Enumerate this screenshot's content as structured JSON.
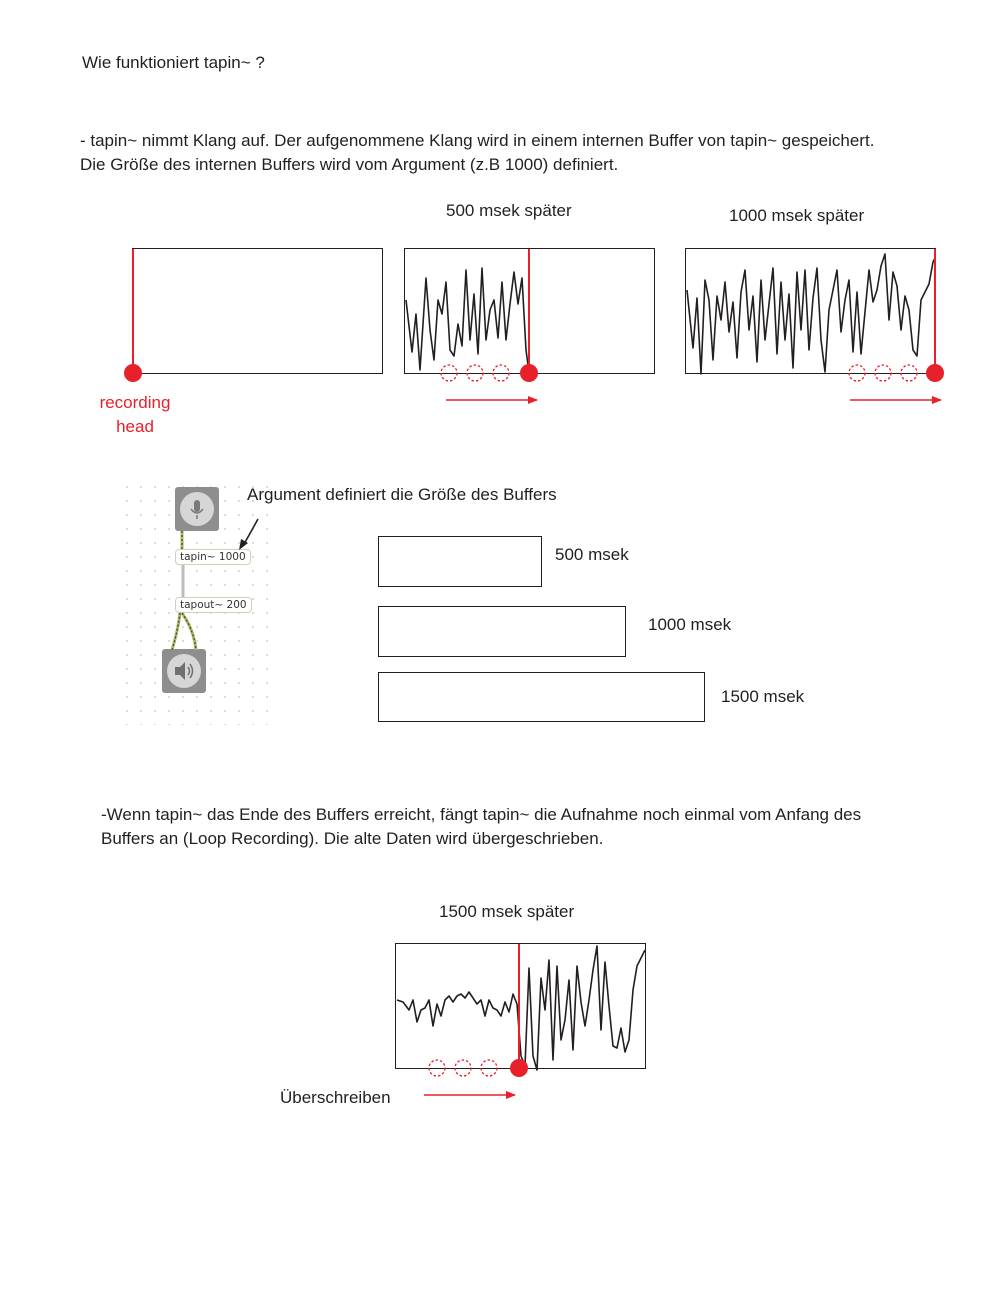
{
  "heading": "Wie  funktioniert  tapin~ ?",
  "intro": {
    "line1": "- tapin~ nimmt Klang auf. Der aufgenommene Klang wird in einem internen Buffer von tapin~ gespeichert.",
    "line2": "Die Größe des internen Buffers wird vom Argument (z.B 1000) definiert."
  },
  "diagram1": {
    "label_500": "500 msek später",
    "label_1000": "1000 msek später",
    "recording_head": [
      "recording",
      "head"
    ]
  },
  "patch": {
    "argument_note": "Argument definiert die Größe des Buffers",
    "tapin_object": "tapin~ 1000",
    "tapout_object": "tapout~ 200",
    "input_icon": "microphone-icon",
    "output_icon": "speaker-icon"
  },
  "buffer_sizes": [
    {
      "label": "500 msek",
      "ms": 500
    },
    {
      "label": "1000 msek",
      "ms": 1000
    },
    {
      "label": "1500 msek",
      "ms": 1500
    }
  ],
  "loop": {
    "line1": "-Wenn tapin~ das Ende des Buffers erreicht, fängt tapin~ die Aufnahme noch einmal vom Anfang des",
    "line2": "Buffers an (Loop Recording). Die alte Daten wird übergeschrieben.",
    "label_1500": "1500 msek später",
    "overwrite": "Überschreiben"
  },
  "colors": {
    "accent_red": "#e8202a",
    "line": "#231f20"
  }
}
